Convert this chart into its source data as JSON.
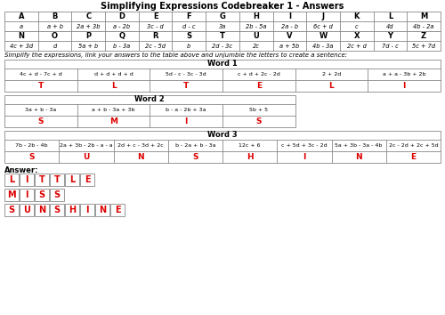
{
  "title": "Simplifying Expressions Codebreaker 1 - Answers",
  "table1_headers": [
    "A",
    "B",
    "C",
    "D",
    "E",
    "F",
    "G",
    "H",
    "I",
    "J",
    "K",
    "L",
    "M"
  ],
  "table1_values": [
    "a",
    "a + b",
    "2a + 3b",
    "a - 2b",
    "3c - d",
    "d - c",
    "3a",
    "2b - 5a",
    "2a - b",
    "6c + d",
    "c",
    "4d",
    "4b - 2a"
  ],
  "table2_headers": [
    "N",
    "O",
    "P",
    "Q",
    "R",
    "S",
    "T",
    "U",
    "V",
    "W",
    "X",
    "Y",
    "Z"
  ],
  "table2_values": [
    "4c + 3d",
    "d",
    "5a + b",
    "b - 3a",
    "2c - 5d",
    "b",
    "2d - 3c",
    "2c",
    "a + 5b",
    "4b - 3a",
    "2c + d",
    "7d - c",
    "5c + 7d"
  ],
  "instruction": "Simplify the expressions, link your answers to the table above and unjumble the letters to create a sentence:",
  "word1_label": "Word 1",
  "word1_expressions": [
    "4c + d - 7c + d",
    "d + d + d + d",
    "5d - c - 3c - 3d",
    "c + d + 2c - 2d",
    "2 + 2d",
    "a + a - 3b + 2b"
  ],
  "word1_answers": [
    "T",
    "L",
    "T",
    "E",
    "L",
    "I"
  ],
  "word2_label": "Word 2",
  "word2_expressions": [
    "3a + b - 3a",
    "a + b - 3a + 3b",
    "b - a - 2b + 3a",
    "5b + 5"
  ],
  "word2_answers": [
    "S",
    "M",
    "I",
    "S"
  ],
  "word3_label": "Word 3",
  "word3_expressions": [
    "7b - 2b - 4b",
    "2a + 3b - 2b - a - a",
    "2d + c - 3d + 2c",
    "b - 2a + b - 3a",
    "12c + 6",
    "c + 5d + 3c - 2d",
    "5a + 3b - 3a - 4b",
    "2c - 2d + 2c + 5d"
  ],
  "word3_answers": [
    "S",
    "U",
    "N",
    "S",
    "H",
    "I",
    "N",
    "E"
  ],
  "answer_label": "Answer:",
  "answer_rows": [
    [
      "L",
      "I",
      "T",
      "T",
      "L",
      "E"
    ],
    [
      "M",
      "I",
      "S",
      "S"
    ],
    [
      "S",
      "U",
      "N",
      "S",
      "H",
      "I",
      "N",
      "E"
    ]
  ],
  "bg_color": "#FFFFFF",
  "grid_color": "#888888",
  "red_color": "#DD0000"
}
